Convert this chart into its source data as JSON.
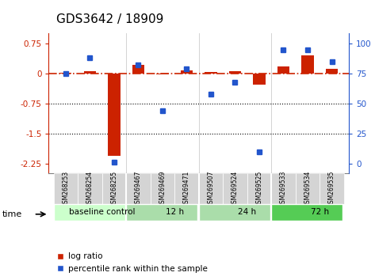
{
  "title": "GDS3642 / 18909",
  "samples": [
    "GSM268253",
    "GSM268254",
    "GSM268255",
    "GSM269467",
    "GSM269469",
    "GSM269471",
    "GSM269507",
    "GSM269524",
    "GSM269525",
    "GSM269533",
    "GSM269534",
    "GSM269535"
  ],
  "log_ratio": [
    0.02,
    0.07,
    -2.05,
    0.22,
    -0.02,
    0.08,
    0.05,
    0.07,
    -0.28,
    0.18,
    0.45,
    0.12
  ],
  "percentile_rank": [
    75,
    88,
    1,
    82,
    44,
    79,
    58,
    68,
    10,
    95,
    95,
    85
  ],
  "groups": [
    {
      "label": "baseline control",
      "start": 0,
      "end": 3,
      "color": "#ccffcc"
    },
    {
      "label": "12 h",
      "start": 3,
      "end": 6,
      "color": "#99ff99"
    },
    {
      "label": "24 h",
      "start": 6,
      "end": 9,
      "color": "#99ff99"
    },
    {
      "label": "72 h",
      "start": 9,
      "end": 12,
      "color": "#66dd66"
    }
  ],
  "ylim_left": [
    -2.5,
    1.0
  ],
  "yticks_left": [
    0.75,
    0.0,
    -0.75,
    -1.5,
    -2.25
  ],
  "ytick_labels_left": [
    "0.75",
    "0",
    "-0.75",
    "-1.5",
    "-2.25"
  ],
  "ylim_right": [
    -8.33,
    108.33
  ],
  "yticks_right": [
    100,
    75,
    50,
    25,
    0
  ],
  "bar_color": "#cc2200",
  "dot_color": "#2255cc",
  "hline_y": 0,
  "dotted_lines": [
    -0.75,
    -1.5
  ],
  "background_color": "#ffffff",
  "plot_bg": "#ffffff",
  "time_label": "time",
  "legend_logratio": "log ratio",
  "legend_percentile": "percentile rank within the sample"
}
